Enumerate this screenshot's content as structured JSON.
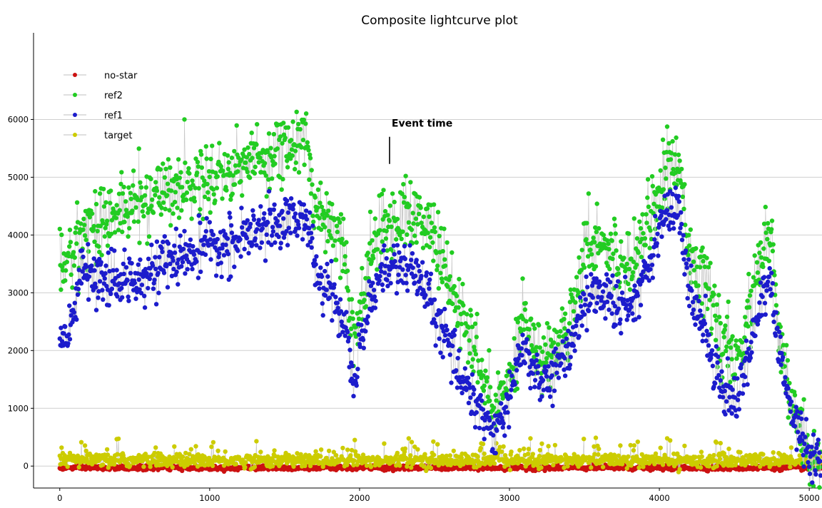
{
  "chart_data": {
    "type": "scatter",
    "title": "Composite lightcurve plot",
    "xlabel": "",
    "ylabel": "",
    "xlim": [
      -175,
      5085
    ],
    "ylim": [
      -380,
      7500
    ],
    "x_ticks": [
      0,
      1000,
      2000,
      3000,
      4000,
      5000
    ],
    "y_ticks": [
      0,
      1000,
      2000,
      3000,
      4000,
      5000,
      6000
    ],
    "grid": "horizontal",
    "legend_position": "top-left",
    "annotation": {
      "text": "Event time",
      "x": 2200,
      "y_from": 5230,
      "y_to": 5700
    },
    "n_points": 5080,
    "series": [
      {
        "name": "no-star",
        "color": "#cc1111",
        "line_color": "#c8c8c8",
        "mean": -30,
        "noise": 20,
        "profile_x": [
          0,
          5080
        ],
        "profile_y": [
          -30,
          -30
        ]
      },
      {
        "name": "ref2",
        "color": "#22cc22",
        "line_color": "#c8c8c8",
        "noise": 300,
        "profile_x": [
          0,
          50,
          150,
          300,
          500,
          700,
          900,
          1100,
          1300,
          1500,
          1650,
          1700,
          1800,
          1900,
          1960,
          2000,
          2100,
          2200,
          2300,
          2400,
          2500,
          2600,
          2700,
          2800,
          2900,
          3000,
          3100,
          3200,
          3300,
          3400,
          3500,
          3600,
          3700,
          3800,
          3900,
          4000,
          4100,
          4150,
          4200,
          4300,
          4400,
          4500,
          4600,
          4700,
          4750,
          4800,
          4900,
          5000,
          5080
        ],
        "profile_y": [
          3700,
          3400,
          4100,
          4300,
          4500,
          4800,
          4900,
          5100,
          5300,
          5500,
          5600,
          4500,
          4300,
          3800,
          2200,
          2700,
          3900,
          4200,
          4400,
          4300,
          4000,
          3100,
          2500,
          1700,
          900,
          1600,
          2700,
          1800,
          2000,
          2500,
          3800,
          4000,
          3600,
          3500,
          4100,
          4800,
          5300,
          5000,
          3800,
          3200,
          2300,
          1700,
          2600,
          3900,
          3800,
          2100,
          900,
          250,
          150
        ]
      },
      {
        "name": "ref1",
        "color": "#1c1ccc",
        "line_color": "#c8c8c8",
        "noise": 220,
        "profile_x": [
          0,
          50,
          150,
          300,
          500,
          700,
          900,
          1100,
          1300,
          1500,
          1650,
          1700,
          1800,
          1900,
          1960,
          2000,
          2100,
          2200,
          2300,
          2400,
          2500,
          2600,
          2700,
          2800,
          2900,
          3000,
          3100,
          3200,
          3300,
          3400,
          3500,
          3600,
          3700,
          3800,
          3900,
          4000,
          4100,
          4150,
          4200,
          4300,
          4400,
          4500,
          4600,
          4700,
          4750,
          4800,
          4900,
          5000,
          5080
        ],
        "profile_y": [
          2300,
          2100,
          3400,
          3100,
          3300,
          3500,
          3700,
          3800,
          4000,
          4300,
          4300,
          3400,
          3000,
          2500,
          1400,
          2000,
          3200,
          3400,
          3500,
          3200,
          2700,
          2000,
          1500,
          1000,
          500,
          1200,
          2100,
          1400,
          1600,
          2000,
          2900,
          3000,
          2800,
          2700,
          3300,
          4200,
          4500,
          4100,
          3000,
          2400,
          1500,
          1100,
          2000,
          3000,
          3100,
          1900,
          800,
          200,
          120
        ]
      },
      {
        "name": "target",
        "color": "#cccc00",
        "line_color": "#c8c8c8",
        "mean": 100,
        "noise": 60,
        "profile_x": [
          0,
          5080
        ],
        "profile_y": [
          100,
          100
        ]
      }
    ]
  }
}
